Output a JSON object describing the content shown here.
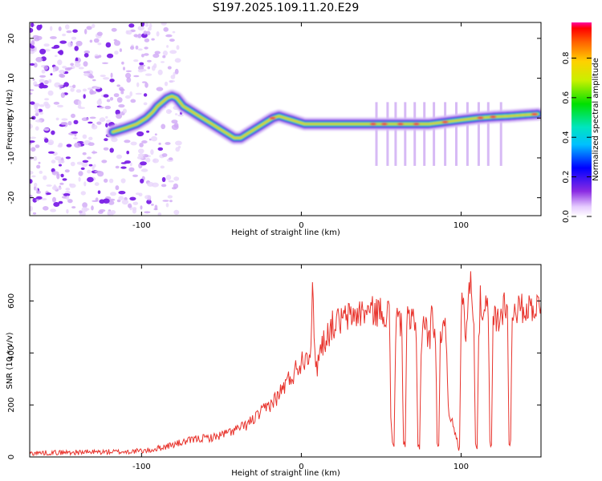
{
  "title": "S197.2025.109.11.20.E29",
  "chart_data": [
    {
      "type": "heatmap",
      "name": "spectrogram",
      "xlabel": "Height of straight line (km)",
      "ylabel": "Frequency (Hz)",
      "xlim": [
        -170,
        150
      ],
      "ylim": [
        -24.5,
        24
      ],
      "xticks": [
        -100,
        0,
        100
      ],
      "yticks": [
        -20,
        -10,
        0,
        10,
        20
      ],
      "ridge": {
        "x": [
          -118,
          -110,
          -103,
          -97,
          -93,
          -90,
          -87,
          -84,
          -81,
          -78,
          -74,
          -70,
          -66,
          -62,
          -58,
          -54,
          -50,
          -46,
          -42,
          -38,
          -34,
          -30,
          -26,
          -22,
          -18,
          -14,
          -10,
          -6,
          -2,
          2,
          6,
          10,
          20,
          30,
          40,
          50,
          60,
          70,
          80,
          90,
          100,
          110,
          120,
          130,
          140,
          148
        ],
        "y": [
          -3.5,
          -2.5,
          -1.5,
          0,
          1.5,
          3,
          4,
          5,
          5.5,
          5,
          3,
          2,
          1,
          0,
          -1,
          -2,
          -3,
          -4,
          -5,
          -5,
          -4,
          -3,
          -2,
          -1,
          0,
          0.5,
          0,
          -0.5,
          -1,
          -1.5,
          -1.5,
          -1.5,
          -1.5,
          -1.5,
          -1.5,
          -1.5,
          -1.5,
          -1.5,
          -1.5,
          -1,
          -0.5,
          0,
          0.3,
          0.5,
          0.8,
          1
        ]
      },
      "ridge_streak_x": [
        47,
        54,
        59,
        65,
        71,
        77,
        83,
        90,
        97,
        104,
        111,
        117,
        125
      ],
      "colorbar": {
        "label": "Normalized spectral amplitude",
        "range": [
          0,
          0.98
        ],
        "ticks": [
          "0.0",
          "0.2",
          "0.4",
          "0.6",
          "0.8"
        ]
      }
    },
    {
      "type": "line",
      "name": "snr",
      "xlabel": "Height of straight line (km)",
      "ylabel": "SNR (10 * v/v)",
      "xlim": [
        -170,
        150
      ],
      "ylim": [
        0,
        740
      ],
      "xticks": [
        -100,
        0,
        100
      ],
      "yticks": [
        0,
        200,
        400,
        600
      ],
      "color": "#e8332c",
      "series": [
        {
          "name": "SNR",
          "x": [
            -170,
            -140,
            -110,
            -95,
            -85,
            -75,
            -65,
            -55,
            -45,
            -35,
            -25,
            -15,
            -10,
            -5,
            0,
            4,
            6,
            7,
            8,
            10,
            12,
            16,
            20,
            25,
            30,
            40,
            50,
            54,
            55,
            56,
            57,
            58,
            59,
            60,
            62,
            63,
            64,
            65,
            66,
            67,
            68,
            69,
            70,
            71,
            72,
            73,
            74,
            75,
            76,
            78,
            80,
            82,
            84,
            85,
            86,
            87,
            88,
            89,
            90,
            91,
            92,
            93,
            94,
            96,
            97,
            98,
            99,
            100,
            101,
            102,
            103,
            104,
            105,
            106,
            107,
            108,
            109,
            110,
            111,
            112,
            113,
            114,
            115,
            116,
            117,
            118,
            119,
            120,
            121,
            122,
            123,
            124,
            125,
            126,
            127,
            128,
            129,
            130,
            131,
            132,
            133,
            134,
            135,
            138,
            142,
            146,
            150
          ],
          "y": [
            15,
            18,
            20,
            25,
            40,
            55,
            70,
            75,
            95,
            120,
            170,
            230,
            280,
            320,
            370,
            400,
            430,
            680,
            420,
            350,
            420,
            470,
            510,
            525,
            540,
            560,
            560,
            555,
            560,
            160,
            60,
            40,
            480,
            540,
            520,
            470,
            50,
            45,
            520,
            520,
            510,
            510,
            530,
            500,
            480,
            40,
            40,
            400,
            530,
            500,
            440,
            560,
            470,
            60,
            40,
            430,
            510,
            540,
            500,
            420,
            200,
            170,
            140,
            90,
            80,
            40,
            30,
            560,
            610,
            570,
            480,
            560,
            620,
            740,
            620,
            470,
            60,
            40,
            460,
            600,
            540,
            500,
            560,
            580,
            560,
            50,
            40,
            500,
            560,
            520,
            540,
            500,
            560,
            560,
            600,
            590,
            600,
            40,
            60,
            560,
            570,
            580,
            570,
            570,
            575,
            580,
            580
          ]
        }
      ]
    }
  ]
}
